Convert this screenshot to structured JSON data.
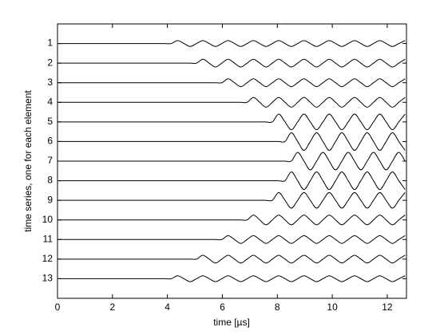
{
  "chart_data": {
    "type": "line",
    "x_label": "time [µs]",
    "y_label": "time series, one for each element",
    "y_reversed": true,
    "grid": false,
    "xlim": [
      0,
      12.7
    ],
    "xticks": [
      0,
      2,
      4,
      6,
      8,
      10,
      12
    ],
    "ylim": [
      0,
      14
    ],
    "yticks": [
      1,
      2,
      3,
      4,
      5,
      6,
      7,
      8,
      9,
      10,
      11,
      12,
      13
    ],
    "x": [
      0,
      0.23,
      0.46,
      0.69,
      0.92,
      1.15,
      1.38,
      1.61,
      1.84,
      2.07,
      2.3,
      2.53,
      2.76,
      2.99,
      3.22,
      3.45,
      3.68,
      3.91,
      4.14,
      4.37,
      4.6,
      4.83,
      5.06,
      5.29,
      5.52,
      5.75,
      5.98,
      6.21,
      6.44,
      6.67,
      6.9,
      7.13,
      7.36,
      7.59,
      7.82,
      8.05,
      8.28,
      8.51,
      8.74,
      8.97,
      9.2,
      9.43,
      9.66,
      9.89,
      10.12,
      10.35,
      10.58,
      10.81,
      11.04,
      11.27,
      11.5,
      11.73,
      11.96,
      12.19,
      12.42,
      12.65
    ],
    "series": [
      {
        "color": "#000000",
        "values": [
          1,
          1,
          1,
          1,
          1,
          1,
          1,
          1,
          1,
          1,
          1,
          1,
          1,
          1,
          1,
          1,
          1,
          1,
          1,
          0.85,
          1,
          1.15,
          1,
          0.85,
          1,
          1.15,
          1,
          0.85,
          1,
          1.15,
          1,
          0.85,
          1,
          1.15,
          1,
          0.85,
          1,
          1.15,
          1,
          0.85,
          1,
          1.15,
          1,
          0.85,
          1,
          1.15,
          1,
          0.85,
          1,
          1.15,
          1,
          0.85,
          1,
          1.15,
          1,
          0.85
        ]
      },
      {
        "color": "#000000",
        "values": [
          2,
          2,
          2,
          2,
          2,
          2,
          2,
          2,
          2,
          2,
          2,
          2,
          2,
          2,
          2,
          2,
          2,
          2,
          2,
          2,
          2,
          2,
          2,
          1.8,
          2,
          2.2,
          2,
          1.8,
          2,
          2.2,
          2,
          1.8,
          2,
          2.2,
          2,
          1.8,
          2,
          2.2,
          2,
          1.8,
          2,
          2.2,
          2,
          1.8,
          2,
          2.2,
          2,
          1.8,
          2,
          2.2,
          2,
          1.8,
          2,
          2.2,
          2,
          1.8
        ]
      },
      {
        "color": "#000000",
        "values": [
          3,
          3,
          3,
          3,
          3,
          3,
          3,
          3,
          3,
          3,
          3,
          3,
          3,
          3,
          3,
          3,
          3,
          3,
          3,
          3,
          3,
          3,
          3,
          3,
          3,
          3,
          3,
          2.8,
          3,
          3.2,
          3,
          2.8,
          3,
          3.2,
          3,
          2.8,
          3,
          3.2,
          3,
          2.8,
          3,
          3.2,
          3,
          2.8,
          3,
          3.2,
          3,
          2.8,
          3,
          3.2,
          3,
          2.8,
          3,
          3.2,
          3,
          2.8
        ]
      },
      {
        "color": "#000000",
        "values": [
          4,
          4,
          4,
          4,
          4,
          4,
          4,
          4,
          4,
          4,
          4,
          4,
          4,
          4,
          4,
          4,
          4,
          4,
          4,
          4,
          4,
          4,
          4,
          4,
          4,
          4,
          4,
          4,
          4,
          4,
          4,
          3.75,
          4,
          4.25,
          4,
          3.75,
          4,
          4.25,
          4,
          3.75,
          4,
          4.25,
          4,
          3.75,
          4,
          4.25,
          4,
          3.75,
          4,
          4.25,
          4,
          3.75,
          4,
          4.25,
          4,
          3.75
        ]
      },
      {
        "color": "#000000",
        "values": [
          5,
          5,
          5,
          5,
          5,
          5,
          5,
          5,
          5,
          5,
          5,
          5,
          5,
          5,
          5,
          5,
          5,
          5,
          5,
          5,
          5,
          5,
          5,
          5,
          5,
          5,
          5,
          5,
          5,
          5,
          5,
          5,
          5,
          5,
          5,
          4.6,
          5,
          5.4,
          5,
          4.6,
          5,
          5.4,
          5,
          4.6,
          5,
          5.4,
          5,
          4.6,
          5,
          5.4,
          5,
          4.6,
          5,
          5.4,
          5,
          4.6
        ]
      },
      {
        "color": "#000000",
        "values": [
          6,
          6,
          6,
          6,
          6,
          6,
          6,
          6,
          6,
          6,
          6,
          6,
          6,
          6,
          6,
          6,
          6,
          6,
          6,
          6,
          6,
          6,
          6,
          6,
          6,
          6,
          6,
          6,
          6,
          6,
          6,
          6,
          6,
          6,
          6,
          6,
          6,
          5.55,
          6,
          6.45,
          6,
          5.55,
          6,
          6.45,
          6,
          5.55,
          6,
          6.45,
          6,
          5.55,
          6,
          6.45,
          6,
          5.55,
          6,
          6.45
        ]
      },
      {
        "color": "#000000",
        "values": [
          7,
          7,
          7,
          7,
          7,
          7,
          7,
          7,
          7,
          7,
          7,
          7,
          7,
          7,
          7,
          7,
          7,
          7,
          7,
          7,
          7,
          7,
          7,
          7,
          7,
          7,
          7,
          7,
          7,
          7,
          7,
          7,
          7,
          7,
          7,
          7,
          7,
          7,
          6.55,
          7,
          7.45,
          7,
          6.55,
          7,
          7.45,
          7,
          6.55,
          7,
          7.45,
          7,
          6.55,
          7,
          7.45,
          7,
          6.55,
          7
        ]
      },
      {
        "color": "#000000",
        "values": [
          8,
          8,
          8,
          8,
          8,
          8,
          8,
          8,
          8,
          8,
          8,
          8,
          8,
          8,
          8,
          8,
          8,
          8,
          8,
          8,
          8,
          8,
          8,
          8,
          8,
          8,
          8,
          8,
          8,
          8,
          8,
          8,
          8,
          8,
          8,
          8,
          8,
          7.55,
          8,
          8.45,
          8,
          7.55,
          8,
          8.45,
          8,
          7.55,
          8,
          8.45,
          8,
          7.55,
          8,
          8.45,
          8,
          7.55,
          8,
          8.45
        ]
      },
      {
        "color": "#000000",
        "values": [
          9,
          9,
          9,
          9,
          9,
          9,
          9,
          9,
          9,
          9,
          9,
          9,
          9,
          9,
          9,
          9,
          9,
          9,
          9,
          9,
          9,
          9,
          9,
          9,
          9,
          9,
          9,
          9,
          9,
          9,
          9,
          9,
          9,
          9,
          9,
          8.6,
          9,
          9.4,
          9,
          8.6,
          9,
          9.4,
          9,
          8.6,
          9,
          9.4,
          9,
          8.6,
          9,
          9.4,
          9,
          8.6,
          9,
          9.4,
          9,
          8.6
        ]
      },
      {
        "color": "#000000",
        "values": [
          10,
          10,
          10,
          10,
          10,
          10,
          10,
          10,
          10,
          10,
          10,
          10,
          10,
          10,
          10,
          10,
          10,
          10,
          10,
          10,
          10,
          10,
          10,
          10,
          10,
          10,
          10,
          10,
          10,
          10,
          10,
          9.75,
          10,
          10.25,
          10,
          9.75,
          10,
          10.25,
          10,
          9.75,
          10,
          10.25,
          10,
          9.75,
          10,
          10.25,
          10,
          9.75,
          10,
          10.25,
          10,
          9.75,
          10,
          10.25,
          10,
          9.75
        ]
      },
      {
        "color": "#000000",
        "values": [
          11,
          11,
          11,
          11,
          11,
          11,
          11,
          11,
          11,
          11,
          11,
          11,
          11,
          11,
          11,
          11,
          11,
          11,
          11,
          11,
          11,
          11,
          11,
          11,
          11,
          11,
          11,
          10.8,
          11,
          11.2,
          11,
          10.8,
          11,
          11.2,
          11,
          10.8,
          11,
          11.2,
          11,
          10.8,
          11,
          11.2,
          11,
          10.8,
          11,
          11.2,
          11,
          10.8,
          11,
          11.2,
          11,
          10.8,
          11,
          11.2,
          11,
          10.8
        ]
      },
      {
        "color": "#000000",
        "values": [
          12,
          12,
          12,
          12,
          12,
          12,
          12,
          12,
          12,
          12,
          12,
          12,
          12,
          12,
          12,
          12,
          12,
          12,
          12,
          12,
          12,
          12,
          12,
          11.8,
          12,
          12.2,
          12,
          11.8,
          12,
          12.2,
          12,
          11.8,
          12,
          12.2,
          12,
          11.8,
          12,
          12.2,
          12,
          11.8,
          12,
          12.2,
          12,
          11.8,
          12,
          12.2,
          12,
          11.8,
          12,
          12.2,
          12,
          11.8,
          12,
          12.2,
          12,
          11.8
        ]
      },
      {
        "color": "#000000",
        "values": [
          13,
          13,
          13,
          13,
          13,
          13,
          13,
          13,
          13,
          13,
          13,
          13,
          13,
          13,
          13,
          13,
          13,
          13,
          13,
          12.85,
          13,
          13.15,
          13,
          12.85,
          13,
          13.15,
          13,
          12.85,
          13,
          13.15,
          13,
          12.85,
          13,
          13.15,
          13,
          12.85,
          13,
          13.15,
          13,
          12.85,
          13,
          13.15,
          13,
          12.85,
          13,
          13.15,
          13,
          12.85,
          13,
          13.15,
          13,
          12.85,
          13,
          13.15,
          13,
          12.85
        ]
      }
    ]
  }
}
